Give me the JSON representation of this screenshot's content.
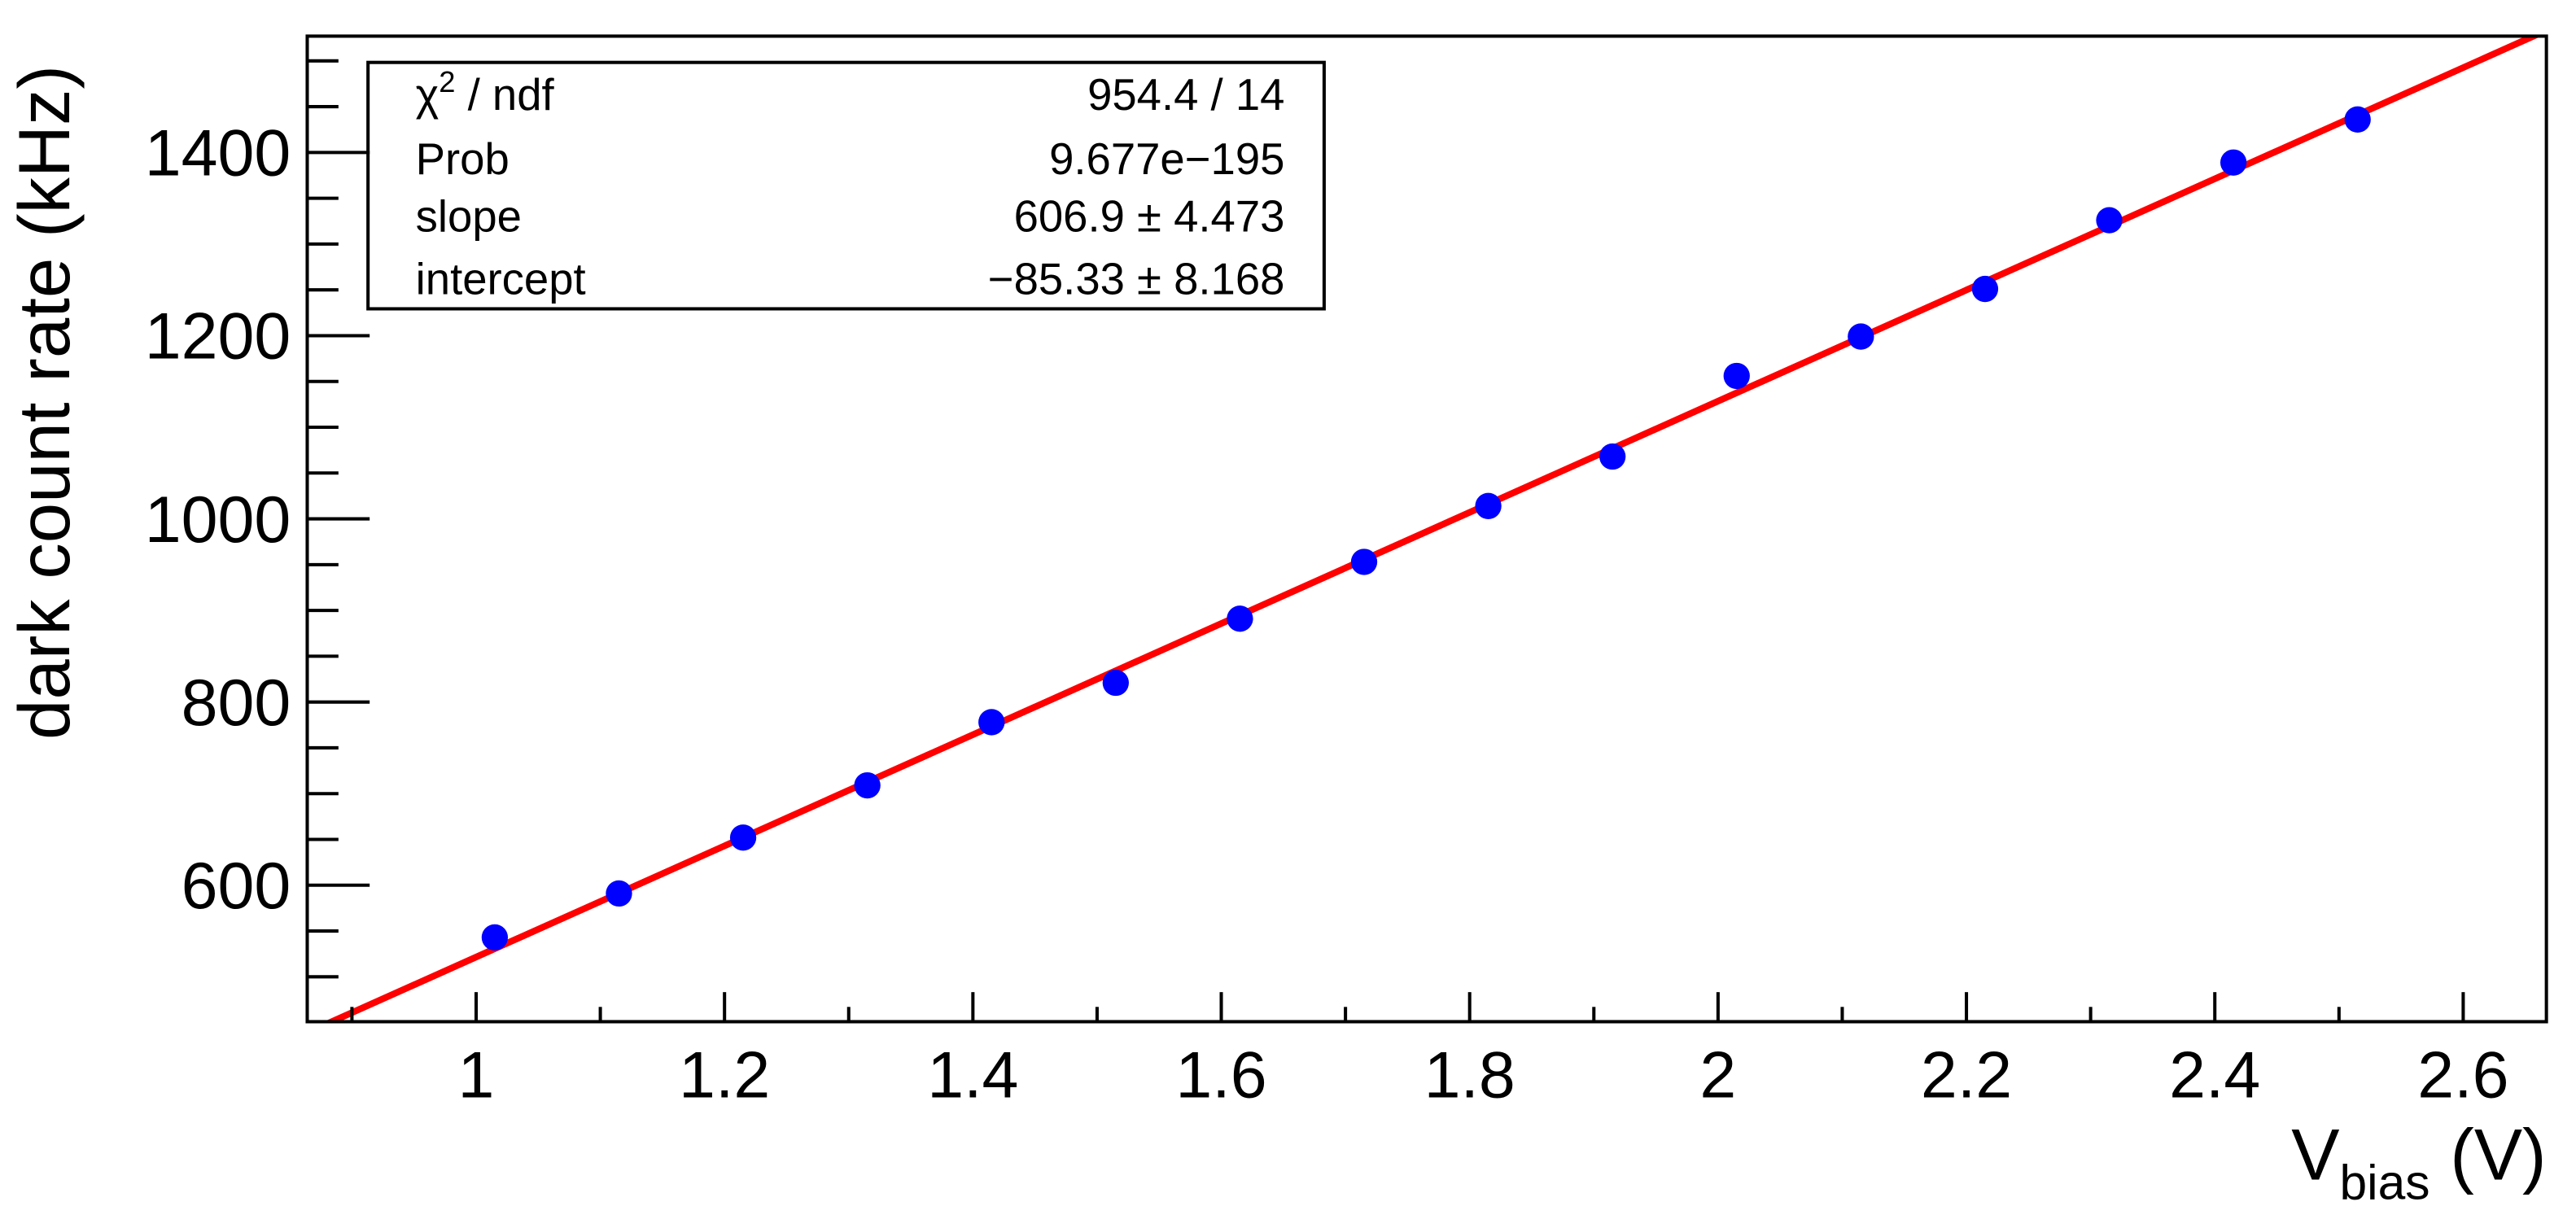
{
  "chart_data": {
    "type": "scatter",
    "x_label": [
      "V",
      "bias",
      " (V)"
    ],
    "y_label": "dark count rate (kHz)",
    "x": [
      1.015,
      1.115,
      1.215,
      1.315,
      1.415,
      1.515,
      1.615,
      1.715,
      1.815,
      1.915,
      2.015,
      2.115,
      2.215,
      2.315,
      2.415,
      2.515
    ],
    "values": [
      543,
      591,
      652,
      709,
      778,
      821,
      891,
      953,
      1014,
      1068,
      1156,
      1199,
      1251,
      1326,
      1389,
      1436
    ],
    "color": "#0000ff",
    "xlim": [
      0.864,
      2.667
    ],
    "ylim": [
      451,
      1527
    ],
    "xticks": [
      1,
      1.2,
      1.4,
      1.6,
      1.8,
      2,
      2.2,
      2.4,
      2.6
    ],
    "xminorticks": [
      0.9,
      1.1,
      1.3,
      1.5,
      1.7,
      1.9,
      2.1,
      2.3,
      2.5
    ],
    "yticks": [
      600,
      800,
      1000,
      1200,
      1400
    ],
    "yminorticks": [
      500,
      550,
      650,
      700,
      750,
      850,
      900,
      950,
      1050,
      1100,
      1150,
      1250,
      1300,
      1350,
      1450,
      1500
    ],
    "fit": {
      "color": "#ff0000",
      "chi2_label": [
        "χ",
        "2",
        " / ndf"
      ],
      "chi2_value": "954.4 / 14",
      "prob_label": "Prob",
      "prob_value": "9.677e−195",
      "slope_label": "slope",
      "slope": {
        "value": 606.9,
        "label": "606.9 ± 4.473"
      },
      "intercept_label": "intercept",
      "intercept": {
        "value": -85.33,
        "label": "−85.33 ± 8.168"
      }
    }
  }
}
